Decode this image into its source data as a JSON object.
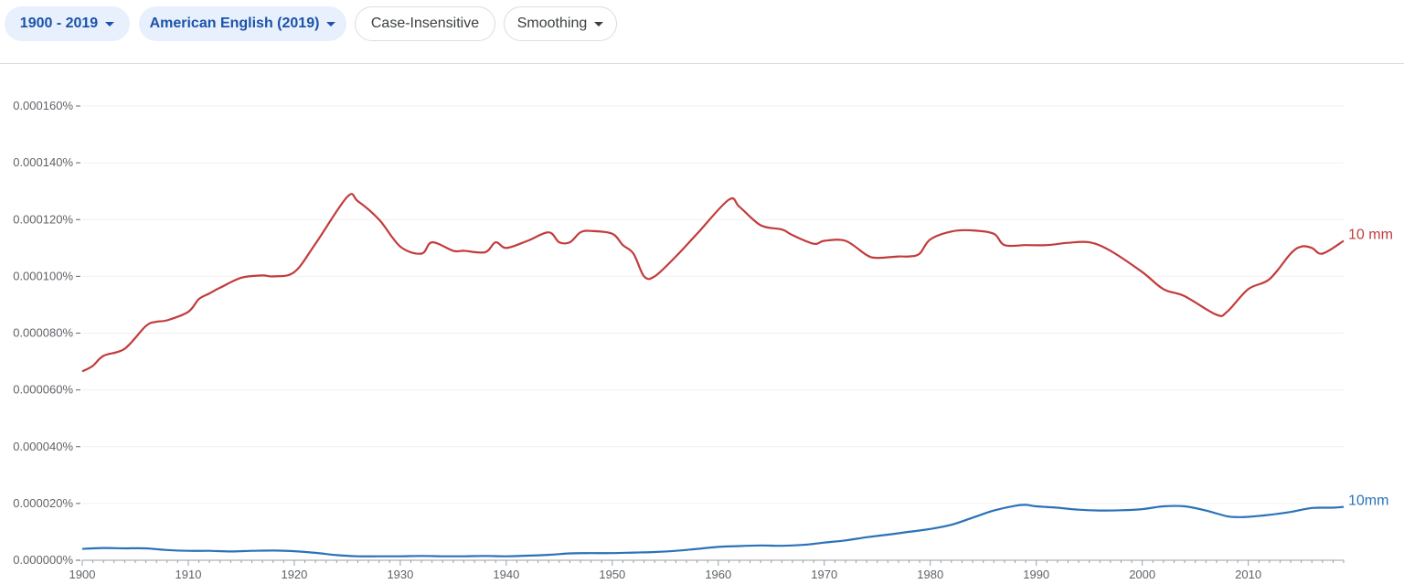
{
  "controls": {
    "range_label": "1900 - 2019",
    "corpus_label": "American English (2019)",
    "case_label": "Case-Insensitive",
    "smoothing_label": "Smoothing",
    "accent_bg": "#e8f0fe",
    "accent_text": "#1a53a8"
  },
  "chart_data": {
    "type": "line",
    "title": "",
    "xlabel": "",
    "ylabel": "",
    "xlim": [
      1900,
      2019
    ],
    "ylim": [
      0,
      0.00016
    ],
    "grid": true,
    "y_ticks": [
      "0.000000%",
      "0.000020%",
      "0.000040%",
      "0.000060%",
      "0.000080%",
      "0.000100%",
      "0.000120%",
      "0.000140%",
      "0.000160%"
    ],
    "y_tick_values": [
      0,
      2e-05,
      4e-05,
      6e-05,
      8e-05,
      0.0001,
      0.00012,
      0.00014,
      0.00016
    ],
    "x_ticks": [
      "1900",
      "1910",
      "1920",
      "1930",
      "1940",
      "1950",
      "1960",
      "1970",
      "1980",
      "1990",
      "2000",
      "2010"
    ],
    "x_tick_values": [
      1900,
      1910,
      1920,
      1930,
      1940,
      1950,
      1960,
      1970,
      1980,
      1990,
      2000,
      2010
    ],
    "series": [
      {
        "name": "10 mm",
        "color": "#c23b3b",
        "x": [
          1900,
          1901,
          1902,
          1904,
          1906,
          1907,
          1908,
          1910,
          1911,
          1912,
          1913,
          1915,
          1917,
          1918,
          1920,
          1922,
          1925,
          1926,
          1928,
          1930,
          1932,
          1933,
          1935,
          1936,
          1938,
          1939,
          1940,
          1942,
          1944,
          1945,
          1946,
          1947,
          1948,
          1950,
          1951,
          1952,
          1953,
          1954,
          1956,
          1958,
          1961,
          1962,
          1964,
          1966,
          1967,
          1969,
          1970,
          1972,
          1974,
          1975,
          1977,
          1978,
          1979,
          1980,
          1982,
          1984,
          1986,
          1987,
          1989,
          1991,
          1993,
          1995,
          1997,
          2000,
          2002,
          2004,
          2007,
          2008,
          2010,
          2012,
          2014,
          2015,
          2016,
          2017,
          2019
        ],
        "values": [
          6.65e-05,
          6.85e-05,
          7.2e-05,
          7.45e-05,
          8.25e-05,
          8.4e-05,
          8.45e-05,
          8.75e-05,
          9.2e-05,
          9.4e-05,
          9.6e-05,
          9.95e-05,
          0.0001003,
          0.0001,
          0.0001015,
          0.0001115,
          0.000128,
          0.0001265,
          0.00012,
          0.0001105,
          0.000108,
          0.000112,
          0.000109,
          0.000109,
          0.0001085,
          0.000112,
          0.00011,
          0.0001125,
          0.0001155,
          0.000112,
          0.000112,
          0.0001155,
          0.000116,
          0.000115,
          0.000111,
          0.000108,
          0.0001,
          0.0001,
          0.000107,
          0.000115,
          0.000127,
          0.0001245,
          0.000118,
          0.0001165,
          0.0001145,
          0.0001115,
          0.0001125,
          0.0001125,
          0.0001075,
          0.0001065,
          0.000107,
          0.000107,
          0.000108,
          0.000113,
          0.0001158,
          0.0001162,
          0.000115,
          0.000111,
          0.000111,
          0.000111,
          0.0001118,
          0.000112,
          0.000109,
          0.0001015,
          9.55e-05,
          9.3e-05,
          8.65e-05,
          8.75e-05,
          9.55e-05,
          9.9e-05,
          0.000108,
          0.0001105,
          0.00011,
          0.000108,
          0.0001125
        ]
      },
      {
        "name": "10mm",
        "color": "#2a72b8",
        "x": [
          1900,
          1902,
          1904,
          1906,
          1908,
          1910,
          1912,
          1914,
          1916,
          1918,
          1920,
          1922,
          1924,
          1926,
          1928,
          1930,
          1932,
          1934,
          1936,
          1938,
          1940,
          1942,
          1944,
          1946,
          1948,
          1950,
          1952,
          1954,
          1956,
          1958,
          1960,
          1962,
          1964,
          1966,
          1968,
          1970,
          1972,
          1974,
          1976,
          1978,
          1980,
          1982,
          1984,
          1986,
          1988,
          1989,
          1990,
          1992,
          1994,
          1996,
          1998,
          2000,
          2002,
          2004,
          2006,
          2008,
          2009,
          2010,
          2012,
          2014,
          2016,
          2018,
          2019
        ],
        "values": [
          4e-06,
          4.3e-06,
          4.2e-06,
          4.2e-06,
          3.6e-06,
          3.3e-06,
          3.3e-06,
          3.1e-06,
          3.3e-06,
          3.4e-06,
          3.2e-06,
          2.6e-06,
          1.8e-06,
          1.4e-06,
          1.4e-06,
          1.4e-06,
          1.5e-06,
          1.4e-06,
          1.4e-06,
          1.5e-06,
          1.4e-06,
          1.6e-06,
          1.9e-06,
          2.4e-06,
          2.5e-06,
          2.5e-06,
          2.7e-06,
          2.9e-06,
          3.3e-06,
          4e-06,
          4.7e-06,
          5e-06,
          5.2e-06,
          5.1e-06,
          5.4e-06,
          6.2e-06,
          7e-06,
          8.1e-06,
          9e-06,
          1e-05,
          1.1e-05,
          1.25e-05,
          1.5e-05,
          1.75e-05,
          1.92e-05,
          1.95e-05,
          1.9e-05,
          1.85e-05,
          1.78e-05,
          1.75e-05,
          1.76e-05,
          1.8e-05,
          1.9e-05,
          1.9e-05,
          1.75e-05,
          1.55e-05,
          1.52e-05,
          1.53e-05,
          1.6e-05,
          1.7e-05,
          1.84e-05,
          1.85e-05,
          1.88e-05
        ]
      }
    ]
  }
}
